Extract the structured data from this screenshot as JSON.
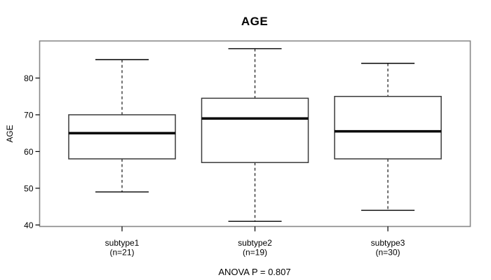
{
  "title": "AGE",
  "footer": "ANOVA P = 0.807",
  "colors": {
    "plot_border": "#888888",
    "box_stroke": "#3a3a3a",
    "median": "#000000",
    "whisker": "#000000",
    "text": "#000000",
    "background": "#ffffff"
  },
  "chart_data": {
    "type": "boxplot",
    "title": "AGE",
    "xlabel": "",
    "ylabel": "AGE",
    "ylim": [
      39.6,
      90.1
    ],
    "yticks": [
      40,
      50,
      60,
      70,
      80
    ],
    "grid": false,
    "annotation": "ANOVA P = 0.807",
    "groups": [
      {
        "label": "subtype1",
        "sublabel": "(n=21)",
        "n": 21,
        "whisker_low": 49,
        "q1": 58,
        "median": 65,
        "q3": 70,
        "whisker_high": 85
      },
      {
        "label": "subtype2",
        "sublabel": "(n=19)",
        "n": 19,
        "whisker_low": 41,
        "q1": 57,
        "median": 69,
        "q3": 74.5,
        "whisker_high": 88
      },
      {
        "label": "subtype3",
        "sublabel": "(n=30)",
        "n": 30,
        "whisker_low": 44,
        "q1": 58,
        "median": 65.5,
        "q3": 75,
        "whisker_high": 84
      }
    ]
  }
}
